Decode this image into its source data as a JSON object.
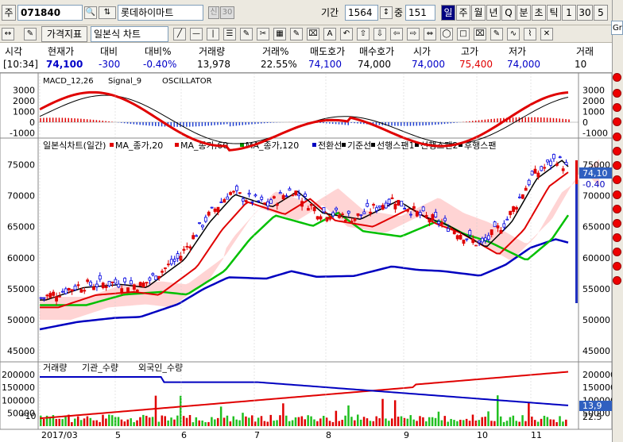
{
  "toolbar": {
    "tab_label": "주",
    "code": "071840",
    "name": "롯데하이마트",
    "badge1": "신",
    "badge2": "30",
    "period_label": "기간",
    "period_value": "1564",
    "count_label": "중",
    "count_value": "151",
    "periods": [
      "일",
      "주",
      "월",
      "년",
      "Q",
      "분",
      "초",
      "틱",
      "1",
      "30",
      "5"
    ],
    "selected_period": "일",
    "indicator_btn": "가격지표",
    "chart_type": "일본식 차트",
    "right_field": "Gr"
  },
  "quote": {
    "headers": [
      "시각",
      "현재가",
      "대비",
      "대비%",
      "거래량",
      "거래%",
      "매도호가",
      "매수호가",
      "시가",
      "고가",
      "저가",
      "거래"
    ],
    "values": [
      "[10:34]",
      "74,100",
      "-300",
      "-0.40%",
      "13,978",
      "22.55%",
      "74,100",
      "74,000",
      "74,000",
      "75,400",
      "74,000",
      "10"
    ]
  },
  "macd_panel": {
    "legend": [
      "MACD_12,26",
      "Signal_9",
      "OSCILLATOR"
    ],
    "ticks": [
      "3000",
      "2000",
      "1000",
      "0",
      "-1000"
    ]
  },
  "price_panel": {
    "legend": [
      "일본식차트(일간)",
      "MA_종가,20",
      "MA_종가,60",
      "MA_종가,120",
      "전환선",
      "기준선",
      "선행스팬1",
      "선행스팬2",
      "후행스팬"
    ],
    "ticks": [
      "75000",
      "70000",
      "65000",
      "60000",
      "55000",
      "50000",
      "45000"
    ],
    "last_price": "74,10",
    "last_change": "-0.40"
  },
  "volume_panel": {
    "legend": [
      "거래량",
      "기관_수량",
      "외국인_수량"
    ],
    "ticks": [
      "200000",
      "150000",
      "100000",
      "50000"
    ],
    "right_values": [
      "13,9",
      "22.5"
    ],
    "scale_label": "*10"
  },
  "x_axis": [
    "2017/03",
    "5",
    "6",
    "7",
    "8",
    "9",
    "10",
    "11"
  ],
  "colors": {
    "up": "#e00000",
    "down": "#0000e0",
    "ma20": "#e00000",
    "ma60": "#00c000",
    "ma120": "#0000c0",
    "cloud": "#ffd0d0"
  }
}
